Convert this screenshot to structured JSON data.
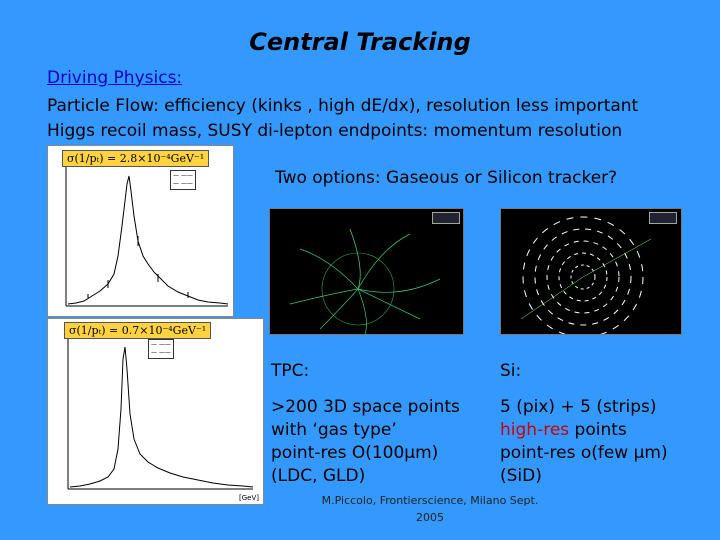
{
  "slide": {
    "title": "Central Tracking",
    "driving_label": "Driving Physics:",
    "line1": "Particle Flow: efficiency (kinks , high dE/dx), resolution  less important",
    "line2": "Higgs recoil mass, SUSY di-lepton endpoints: momentum resolution",
    "options": "Two options: Gaseous or Silicon tracker?",
    "tpc_head": "TPC:",
    "si_head": "Si:",
    "tpc_lines": [
      ">200 3D space points",
      "with ‘gas type’",
      "point-res O(100μm)",
      "(LDC, GLD)"
    ],
    "si_line1": "5 (pix) + 5 (strips)",
    "si_highres": "high-res",
    "si_points": " points",
    "si_line3": "point-res o(few μm)",
    "si_line4": "(SiD)",
    "footer_line1": "M.Piccolo, Frontierscience, Milano   Sept.",
    "footer_line2": "2005"
  },
  "plots": {
    "top_badge": "σ(1/pₜ) = 2.8×10⁻⁴GeV⁻¹",
    "bottom_badge": "σ(1/pₜ) = 0.7×10⁻⁴GeV⁻¹",
    "axis_unit": "[GeV]"
  },
  "colors": {
    "background": "#3399ff",
    "badge": "#ffd23f",
    "highlight": "#cc0000"
  }
}
